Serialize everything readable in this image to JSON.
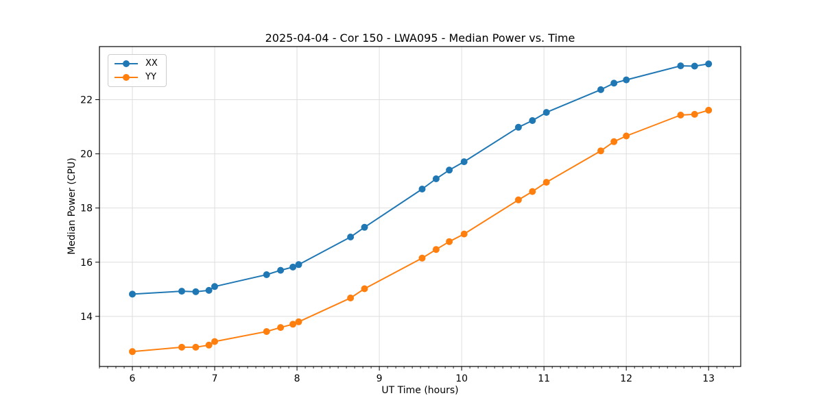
{
  "chart_data": {
    "type": "line",
    "title": "2025-04-04 - Cor 150 - LWA095 - Median Power vs. Time",
    "xlabel": "UT Time (hours)",
    "ylabel": "Median Power (CPU)",
    "xlim": [
      5.6,
      13.39
    ],
    "ylim": [
      12.15,
      23.96
    ],
    "x_major_ticks": [
      6,
      7,
      8,
      9,
      10,
      11,
      12,
      13
    ],
    "x_minor_tick_step": 0.1,
    "y_major_ticks": [
      14,
      16,
      18,
      20,
      22
    ],
    "grid": true,
    "grid_color": "#dedede",
    "spine_color": "#000000",
    "legend_position": "upper-left",
    "x": [
      6.0,
      6.6,
      6.77,
      6.93,
      7.0,
      7.63,
      7.8,
      7.95,
      8.02,
      8.65,
      8.82,
      9.52,
      9.69,
      9.85,
      10.03,
      10.69,
      10.86,
      11.03,
      11.69,
      11.85,
      12.0,
      12.66,
      12.83,
      13.0
    ],
    "series": [
      {
        "name": "XX",
        "color": "#1f77b4",
        "values": [
          14.82,
          14.93,
          14.91,
          14.96,
          15.1,
          15.54,
          15.7,
          15.82,
          15.91,
          16.93,
          17.29,
          18.7,
          19.08,
          19.4,
          19.71,
          20.98,
          21.23,
          21.53,
          22.37,
          22.61,
          22.73,
          23.25,
          23.24,
          23.32
        ]
      },
      {
        "name": "YY",
        "color": "#ff7f0e",
        "values": [
          12.7,
          12.86,
          12.86,
          12.94,
          13.07,
          13.44,
          13.59,
          13.71,
          13.8,
          14.68,
          15.02,
          16.15,
          16.47,
          16.76,
          17.04,
          18.3,
          18.61,
          18.95,
          20.11,
          20.45,
          20.66,
          21.43,
          21.46,
          21.61
        ]
      }
    ]
  }
}
